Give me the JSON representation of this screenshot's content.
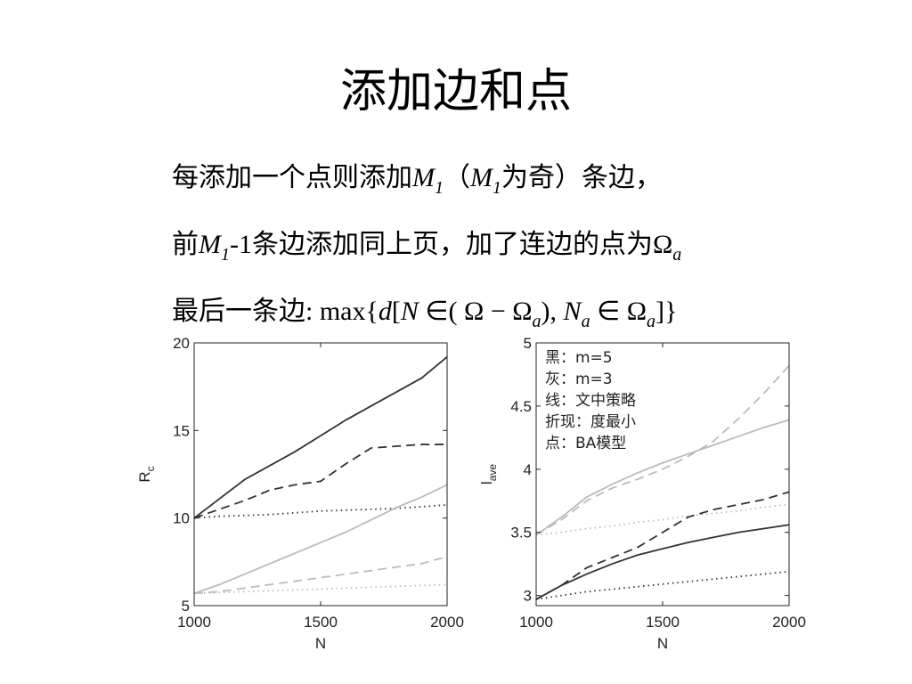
{
  "title": "添加边和点",
  "lines": [
    [
      {
        "text": "每添加一个点则添加"
      },
      {
        "text": "M",
        "italic": true
      },
      {
        "text": "1",
        "italic": true,
        "sub": true
      },
      {
        "text": "（"
      },
      {
        "text": "M",
        "italic": true
      },
      {
        "text": "1",
        "italic": true,
        "sub": true
      },
      {
        "text": "为奇）条边，"
      }
    ],
    [
      {
        "text": "前"
      },
      {
        "text": "M",
        "italic": true
      },
      {
        "text": "1",
        "italic": true,
        "sub": true
      },
      {
        "text": "-1条边添加同上页，加了连边的点为Ω"
      },
      {
        "text": "a",
        "italic": true,
        "sub": true
      }
    ],
    [
      {
        "text": "最后一条边:   max{"
      },
      {
        "text": "d",
        "italic": true
      },
      {
        "text": "["
      },
      {
        "text": "N",
        "italic": true
      },
      {
        "text": " ∈( Ω − Ω"
      },
      {
        "text": "a",
        "italic": true,
        "sub": true
      },
      {
        "text": "), "
      },
      {
        "text": "N",
        "italic": true
      },
      {
        "text": "a",
        "italic": true,
        "sub": true
      },
      {
        "text": " ∈ Ω"
      },
      {
        "text": "a",
        "italic": true,
        "sub": true
      },
      {
        "text": "]}"
      }
    ]
  ],
  "chart_data": [
    {
      "type": "line",
      "xlabel": "N",
      "ylabel": "R",
      "ylabel_sub": "c",
      "x": [
        1000,
        1100,
        1200,
        1300,
        1400,
        1500,
        1600,
        1700,
        1800,
        1900,
        2000
      ],
      "xlim": [
        1000,
        2000
      ],
      "xticks": [
        1000,
        1500,
        2000
      ],
      "ylim": [
        5,
        20
      ],
      "yticks": [
        5,
        10,
        15,
        20
      ],
      "series": [
        {
          "color": "#333333",
          "style": "solid",
          "values": [
            10,
            11.1,
            12.2,
            13.0,
            13.8,
            14.7,
            15.6,
            16.4,
            17.2,
            18.0,
            19.2
          ]
        },
        {
          "color": "#333333",
          "style": "dashed",
          "values": [
            10,
            10.5,
            11.0,
            11.6,
            11.9,
            12.1,
            13.1,
            14.0,
            14.1,
            14.2,
            14.2
          ]
        },
        {
          "color": "#333333",
          "style": "dotted",
          "values": [
            10,
            10.1,
            10.15,
            10.2,
            10.3,
            10.4,
            10.45,
            10.5,
            10.55,
            10.65,
            10.75
          ]
        },
        {
          "color": "#bbbbbb",
          "style": "solid",
          "values": [
            5.7,
            6.2,
            6.8,
            7.4,
            8.0,
            8.6,
            9.2,
            9.9,
            10.6,
            11.2,
            11.9
          ]
        },
        {
          "color": "#bbbbbb",
          "style": "dashed",
          "values": [
            5.7,
            5.8,
            6.0,
            6.2,
            6.4,
            6.6,
            6.8,
            7.0,
            7.2,
            7.4,
            7.8
          ]
        },
        {
          "color": "#bbbbbb",
          "style": "dotted",
          "values": [
            5.7,
            5.75,
            5.8,
            5.85,
            5.9,
            5.95,
            6.0,
            6.05,
            6.1,
            6.15,
            6.2
          ]
        }
      ]
    },
    {
      "type": "line",
      "xlabel": "N",
      "ylabel": "l",
      "ylabel_sub": "ave",
      "annotations": [
        "黑：m=5",
        "灰：m=3",
        "线：文中策略",
        "折现：度最小",
        "点：BA模型"
      ],
      "x": [
        1000,
        1100,
        1200,
        1300,
        1400,
        1500,
        1600,
        1700,
        1800,
        1900,
        2000
      ],
      "xlim": [
        1000,
        2000
      ],
      "xticks": [
        1000,
        1500,
        2000
      ],
      "ylim": [
        2.92,
        5
      ],
      "yticks": [
        3,
        3.5,
        4,
        4.5,
        5
      ],
      "series": [
        {
          "color": "#bbbbbb",
          "style": "solid",
          "values": [
            3.48,
            3.62,
            3.78,
            3.88,
            3.97,
            4.05,
            4.12,
            4.19,
            4.26,
            4.33,
            4.39
          ]
        },
        {
          "color": "#bbbbbb",
          "style": "dashed",
          "values": [
            3.48,
            3.6,
            3.75,
            3.85,
            3.92,
            4.0,
            4.1,
            4.22,
            4.4,
            4.6,
            4.82
          ]
        },
        {
          "color": "#bbbbbb",
          "style": "dotted",
          "values": [
            3.48,
            3.5,
            3.53,
            3.55,
            3.58,
            3.6,
            3.63,
            3.65,
            3.67,
            3.7,
            3.72
          ]
        },
        {
          "color": "#333333",
          "style": "solid",
          "values": [
            2.97,
            3.08,
            3.17,
            3.25,
            3.32,
            3.37,
            3.42,
            3.46,
            3.5,
            3.53,
            3.56
          ]
        },
        {
          "color": "#333333",
          "style": "dashed",
          "values": [
            2.97,
            3.08,
            3.22,
            3.3,
            3.38,
            3.5,
            3.62,
            3.68,
            3.72,
            3.76,
            3.82
          ]
        },
        {
          "color": "#333333",
          "style": "dotted",
          "values": [
            2.97,
            3.0,
            3.03,
            3.05,
            3.07,
            3.09,
            3.11,
            3.13,
            3.15,
            3.17,
            3.19
          ]
        }
      ]
    }
  ]
}
